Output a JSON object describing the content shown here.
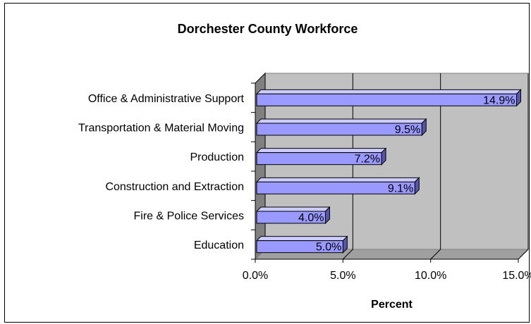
{
  "chart_data": {
    "type": "bar",
    "orientation": "horizontal",
    "style": "3d",
    "title": "Dorchester County Workforce",
    "xlabel": "Percent",
    "ylabel": "",
    "categories": [
      "Office & Administrative Support",
      "Transportation & Material Moving",
      "Production",
      "Construction and Extraction",
      "Fire & Police Services",
      "Education"
    ],
    "values": [
      14.9,
      9.5,
      7.2,
      9.1,
      4.0,
      5.0
    ],
    "value_labels": [
      "14.9%",
      "9.5%",
      "7.2%",
      "9.1%",
      "4.0%",
      "5.0%"
    ],
    "xlim": [
      0,
      15
    ],
    "xticks": [
      0,
      5,
      10,
      15
    ],
    "xtick_labels": [
      "0.0%",
      "5.0%",
      "10.0%",
      "15.0%"
    ],
    "grid": "vertical",
    "legend": "none",
    "colors": {
      "bar_front": "#9999ff",
      "bar_top": "#ccccff",
      "bar_side": "#5555aa",
      "plot_back": "#c0c0c0",
      "plot_wall": "#808080",
      "gridline": "#000000"
    }
  }
}
